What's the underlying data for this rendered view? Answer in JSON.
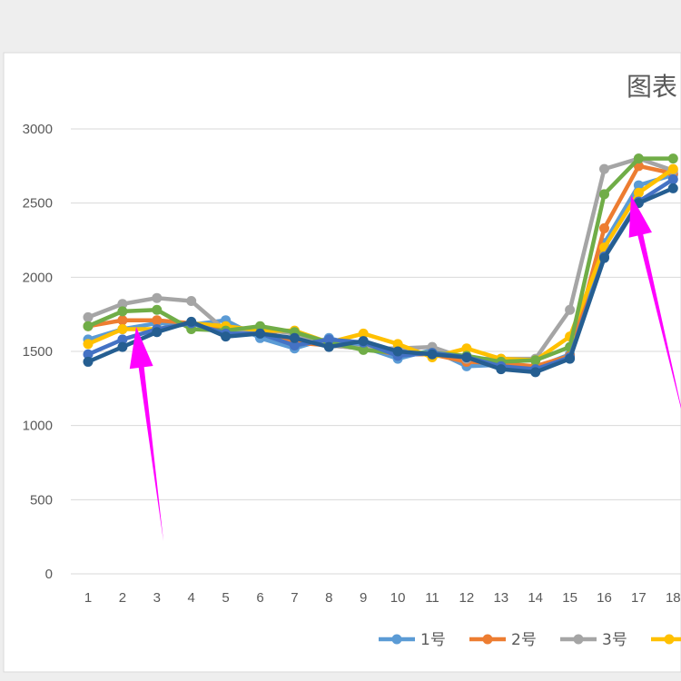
{
  "chart_data": {
    "type": "line",
    "title": "图表",
    "xlabel": "",
    "ylabel": "",
    "ylim": [
      0,
      3000
    ],
    "yticks": [
      0,
      500,
      1000,
      1500,
      2000,
      2500,
      3000
    ],
    "grid": true,
    "legend_position": "bottom",
    "categories": [
      "1",
      "2",
      "3",
      "4",
      "5",
      "6",
      "7",
      "8",
      "9",
      "10",
      "11",
      "12",
      "13",
      "14",
      "15",
      "16",
      "17",
      "18"
    ],
    "series": [
      {
        "name": "1号",
        "color": "#5b9bd5",
        "values": [
          1580,
          1650,
          1690,
          1680,
          1710,
          1590,
          1520,
          1590,
          1530,
          1450,
          1510,
          1400,
          1410,
          1390,
          1480,
          2230,
          2620,
          2690
        ]
      },
      {
        "name": "2号",
        "color": "#ed7d31",
        "values": [
          1670,
          1710,
          1710,
          1690,
          1660,
          1650,
          1560,
          1540,
          1520,
          1480,
          1480,
          1430,
          1420,
          1400,
          1470,
          2330,
          2750,
          2700
        ]
      },
      {
        "name": "3号",
        "color": "#a5a5a5",
        "values": [
          1730,
          1820,
          1860,
          1840,
          1640,
          1650,
          1620,
          1540,
          1520,
          1520,
          1530,
          1450,
          1450,
          1450,
          1780,
          2730,
          2800,
          2720
        ]
      },
      {
        "name": "",
        "color": "#ffc000",
        "values": [
          1550,
          1650,
          1650,
          1690,
          1670,
          1640,
          1640,
          1560,
          1620,
          1550,
          1460,
          1520,
          1450,
          1440,
          1600,
          2200,
          2570,
          2730
        ]
      },
      {
        "name": "",
        "color": "#70ad47",
        "values": [
          1670,
          1770,
          1780,
          1650,
          1640,
          1670,
          1630,
          1560,
          1510,
          1490,
          1490,
          1470,
          1430,
          1440,
          1530,
          2560,
          2800,
          2800
        ]
      },
      {
        "name": "",
        "color": "#4472c4",
        "values": [
          1480,
          1580,
          1650,
          1690,
          1620,
          1620,
          1540,
          1580,
          1560,
          1470,
          1490,
          1460,
          1400,
          1380,
          1460,
          2140,
          2510,
          2660
        ]
      },
      {
        "name": "",
        "color": "#255e91",
        "values": [
          1430,
          1530,
          1630,
          1700,
          1600,
          1620,
          1590,
          1530,
          1570,
          1500,
          1480,
          1460,
          1380,
          1360,
          1450,
          2130,
          2500,
          2600
        ]
      }
    ],
    "annotations": [
      {
        "type": "arrow",
        "color": "#ff00ff"
      },
      {
        "type": "arrow",
        "color": "#ff00ff"
      },
      {
        "type": "arrow",
        "color": "#ff00ff"
      }
    ]
  }
}
